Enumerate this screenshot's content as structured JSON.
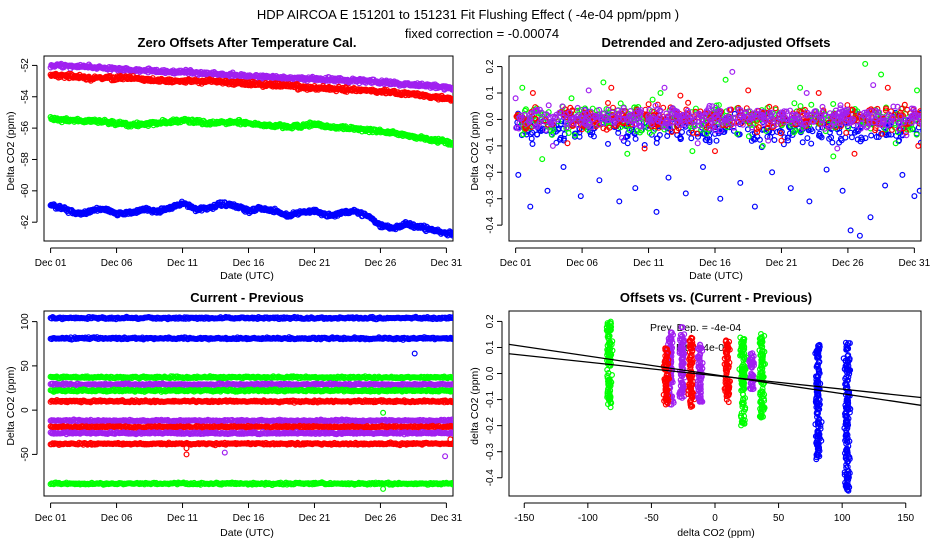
{
  "header": {
    "title": "HDP   AIRCOA E   151201 to 151231   Fit Flushing Effect ( -4e-04 ppm/ppm )",
    "subtitle": "fixed correction = -0.00074"
  },
  "colors": {
    "purple": "#a020f0",
    "red": "#ff0000",
    "green": "#00ff00",
    "blue": "#0000ff",
    "black": "#000000"
  },
  "chart_data": [
    {
      "id": "zero-offsets",
      "type": "scatter",
      "title": "Zero Offsets After Temperature Cal.",
      "xlabel": "Date (UTC)",
      "ylabel": "Delta CO2 (ppm)",
      "xlim": [
        0.5,
        31.5
      ],
      "ylim": [
        -63.2,
        -51.4
      ],
      "xticks": [
        1,
        6,
        11,
        16,
        21,
        26,
        31
      ],
      "xticklabels": [
        "Dec 01",
        "Dec 06",
        "Dec 11",
        "Dec 16",
        "Dec 21",
        "Dec 26",
        "Dec 31"
      ],
      "yticks": [
        -62,
        -60,
        -58,
        -56,
        -54,
        -52
      ],
      "yticklabels": [
        "-62",
        "-60",
        "-58",
        "-56",
        "-54",
        "-52"
      ],
      "series": [
        {
          "name": "purple",
          "color": "purple",
          "x": [
            1,
            4,
            7,
            10,
            13,
            16,
            19,
            22,
            25,
            28,
            31,
            32
          ],
          "y": [
            -52.0,
            -52.1,
            -52.3,
            -52.4,
            -52.5,
            -52.7,
            -52.8,
            -52.9,
            -53.0,
            -53.2,
            -53.4,
            -53.5
          ]
        },
        {
          "name": "red",
          "color": "red",
          "x": [
            1,
            4,
            7,
            10,
            13,
            16,
            19,
            22,
            25,
            28,
            31,
            32
          ],
          "y": [
            -52.6,
            -52.8,
            -52.8,
            -53.0,
            -53.0,
            -53.2,
            -53.3,
            -53.5,
            -53.6,
            -53.8,
            -54.1,
            -54.3
          ]
        },
        {
          "name": "green",
          "color": "green",
          "x": [
            1,
            3,
            5,
            7,
            9,
            11,
            13,
            15,
            17,
            19,
            21,
            23,
            25,
            27,
            29,
            31,
            32
          ],
          "y": [
            -55.4,
            -55.5,
            -55.6,
            -55.8,
            -55.7,
            -55.5,
            -55.7,
            -55.6,
            -55.8,
            -55.9,
            -55.8,
            -56.0,
            -56.1,
            -56.3,
            -56.6,
            -56.9,
            -57.1
          ]
        },
        {
          "name": "blue",
          "color": "blue",
          "x": [
            1,
            2,
            3,
            4,
            5,
            6,
            7,
            8,
            9,
            10,
            11,
            12,
            13,
            14,
            15,
            16,
            17,
            18,
            19,
            20,
            21,
            22,
            23,
            24,
            25,
            26,
            27,
            28,
            29,
            30,
            31,
            32
          ],
          "y": [
            -60.9,
            -61.1,
            -61.5,
            -61.3,
            -61.1,
            -61.5,
            -61.4,
            -61.2,
            -61.3,
            -61.1,
            -60.8,
            -61.2,
            -61.1,
            -60.8,
            -61.0,
            -61.3,
            -61.1,
            -61.3,
            -61.6,
            -61.4,
            -61.3,
            -61.6,
            -61.4,
            -61.3,
            -61.6,
            -62.2,
            -62.4,
            -62.1,
            -62.3,
            -62.5,
            -62.7,
            -62.8
          ]
        }
      ]
    },
    {
      "id": "detrended",
      "type": "scatter",
      "title": "Detrended and Zero-adjusted Offsets",
      "xlabel": "Date (UTC)",
      "ylabel": "Delta CO2 (ppm)",
      "xlim": [
        0.5,
        31.5
      ],
      "ylim": [
        -0.46,
        0.24
      ],
      "xticks": [
        1,
        6,
        11,
        16,
        21,
        26,
        31
      ],
      "xticklabels": [
        "Dec 01",
        "Dec 06",
        "Dec 11",
        "Dec 16",
        "Dec 21",
        "Dec 26",
        "Dec 31"
      ],
      "yticks": [
        -0.4,
        -0.3,
        -0.2,
        -0.1,
        0.0,
        0.1,
        0.2
      ],
      "yticklabels": [
        "-0.4",
        "-0.3",
        "-0.2",
        "-0.1",
        "0.0",
        "0.1",
        "0.2"
      ],
      "series": [
        {
          "name": "blue",
          "color": "blue",
          "x": [
            1.2,
            2.1,
            3.4,
            4.6,
            5.9,
            7.3,
            8.8,
            10.0,
            11.6,
            12.5,
            13.8,
            15.1,
            16.4,
            17.9,
            19.0,
            20.3,
            21.7,
            23.1,
            24.4,
            25.6,
            26.2,
            26.9,
            27.7,
            28.8,
            30.1,
            31.0,
            31.4
          ],
          "y": [
            -0.21,
            -0.33,
            -0.27,
            -0.18,
            -0.29,
            -0.23,
            -0.31,
            -0.26,
            -0.35,
            -0.22,
            -0.28,
            -0.18,
            -0.3,
            -0.24,
            -0.33,
            -0.2,
            -0.26,
            -0.31,
            -0.19,
            -0.27,
            -0.42,
            -0.44,
            -0.37,
            -0.25,
            -0.21,
            -0.29,
            -0.27
          ]
        },
        {
          "name": "green",
          "color": "green",
          "x": [
            1.5,
            3.0,
            5.2,
            7.6,
            9.4,
            11.9,
            14.3,
            16.8,
            19.6,
            22.4,
            24.9,
            27.3,
            28.5,
            29.6,
            31.2
          ],
          "y": [
            0.12,
            -0.15,
            0.08,
            0.14,
            -0.13,
            0.1,
            -0.12,
            0.15,
            -0.1,
            0.12,
            -0.14,
            0.21,
            0.17,
            -0.09,
            0.11
          ]
        },
        {
          "name": "red",
          "color": "red",
          "x": [
            2.3,
            4.9,
            8.2,
            10.7,
            13.4,
            16.0,
            18.5,
            21.0,
            23.8,
            26.5,
            29.0,
            31.3
          ],
          "y": [
            0.1,
            -0.09,
            0.12,
            -0.11,
            0.09,
            -0.12,
            0.11,
            -0.08,
            0.1,
            -0.13,
            0.12,
            -0.1
          ]
        },
        {
          "name": "purple",
          "color": "purple",
          "x": [
            1.0,
            3.8,
            6.5,
            9.0,
            12.2,
            14.7,
            17.3,
            20.0,
            22.9,
            25.2,
            27.9,
            30.4
          ],
          "y": [
            0.08,
            -0.1,
            0.11,
            -0.07,
            0.12,
            -0.09,
            0.18,
            -0.08,
            0.1,
            -0.11,
            0.13,
            -0.06
          ]
        }
      ]
    },
    {
      "id": "current-previous",
      "type": "scatter",
      "title": "Current - Previous",
      "xlabel": "Date (UTC)",
      "ylabel": "Delta CO2 (ppm)",
      "xlim": [
        0.5,
        31.5
      ],
      "ylim": [
        -97,
        112
      ],
      "xticks": [
        1,
        6,
        11,
        16,
        21,
        26,
        31
      ],
      "xticklabels": [
        "Dec 01",
        "Dec 06",
        "Dec 11",
        "Dec 16",
        "Dec 21",
        "Dec 26",
        "Dec 31"
      ],
      "yticks": [
        -50,
        0,
        50,
        100
      ],
      "yticklabels": [
        "-50",
        "0",
        "50",
        "100"
      ],
      "series": [
        {
          "name": "blue-high",
          "color": "blue",
          "level": 104
        },
        {
          "name": "blue-mid",
          "color": "blue",
          "level": 81
        },
        {
          "name": "green-a",
          "color": "green",
          "level": 37
        },
        {
          "name": "purple-a",
          "color": "purple",
          "level": 29
        },
        {
          "name": "green-b",
          "color": "green",
          "level": 22
        },
        {
          "name": "red-a",
          "color": "red",
          "level": 10
        },
        {
          "name": "purple-b",
          "color": "purple",
          "level": -12
        },
        {
          "name": "red-b",
          "color": "red",
          "level": -19
        },
        {
          "name": "purple-c",
          "color": "purple",
          "level": -26
        },
        {
          "name": "red-c",
          "color": "red",
          "level": -38
        },
        {
          "name": "green-c",
          "color": "green",
          "level": -83
        }
      ],
      "outliers": [
        {
          "x": 11.3,
          "y": -50,
          "color": "red"
        },
        {
          "x": 11.3,
          "y": -43,
          "color": "red"
        },
        {
          "x": 14.2,
          "y": -48,
          "color": "purple"
        },
        {
          "x": 26.2,
          "y": -3,
          "color": "green"
        },
        {
          "x": 28.6,
          "y": 64,
          "color": "blue"
        },
        {
          "x": 30.9,
          "y": -52,
          "color": "purple"
        },
        {
          "x": 31.3,
          "y": -33,
          "color": "red"
        },
        {
          "x": 26.2,
          "y": -89,
          "color": "green"
        }
      ]
    },
    {
      "id": "offsets-vs-diff",
      "type": "scatter",
      "title": "Offsets vs. (Current - Previous)",
      "xlabel": "delta CO2 (ppm)",
      "ylabel": "delta CO2 (ppm)",
      "xlim": [
        -162,
        162
      ],
      "ylim": [
        -0.47,
        0.24
      ],
      "xticks": [
        -150,
        -100,
        -50,
        0,
        50,
        100,
        150
      ],
      "xticklabels": [
        "-150",
        "-100",
        "-50",
        "0",
        "50",
        "100",
        "150"
      ],
      "yticks": [
        -0.4,
        -0.3,
        -0.2,
        -0.1,
        0.0,
        0.1,
        0.2
      ],
      "yticklabels": [
        "-0.4",
        "-0.3",
        "-0.2",
        "-0.1",
        "0.0",
        "0.1",
        "0.2"
      ],
      "annotations": [
        "Prev. Dep. = -4e-04",
        "Fit = -4e-04"
      ],
      "clusters": [
        {
          "color": "green",
          "x": -83,
          "ymin": -0.13,
          "ymax": 0.2
        },
        {
          "color": "purple",
          "x": -35,
          "ymin": -0.12,
          "ymax": 0.16
        },
        {
          "color": "purple",
          "x": -26,
          "ymin": -0.1,
          "ymax": 0.18
        },
        {
          "color": "red",
          "x": -38,
          "ymin": -0.12,
          "ymax": 0.1
        },
        {
          "color": "red",
          "x": -19,
          "ymin": -0.13,
          "ymax": 0.14
        },
        {
          "color": "purple",
          "x": -12,
          "ymin": -0.11,
          "ymax": 0.12
        },
        {
          "color": "red",
          "x": 10,
          "ymin": -0.11,
          "ymax": 0.13
        },
        {
          "color": "green",
          "x": 22,
          "ymin": -0.2,
          "ymax": 0.14
        },
        {
          "color": "purple",
          "x": 29,
          "ymin": -0.06,
          "ymax": 0.08
        },
        {
          "color": "green",
          "x": 37,
          "ymin": -0.17,
          "ymax": 0.16
        },
        {
          "color": "blue",
          "x": 81,
          "ymin": -0.33,
          "ymax": 0.11
        },
        {
          "color": "blue",
          "x": 104,
          "ymin": -0.45,
          "ymax": 0.12
        }
      ],
      "fit_lines": [
        {
          "x0": -162,
          "y0": 0.076,
          "x1": 162,
          "y1": -0.092
        },
        {
          "x0": -162,
          "y0": 0.112,
          "x1": 162,
          "y1": -0.122
        }
      ]
    }
  ]
}
